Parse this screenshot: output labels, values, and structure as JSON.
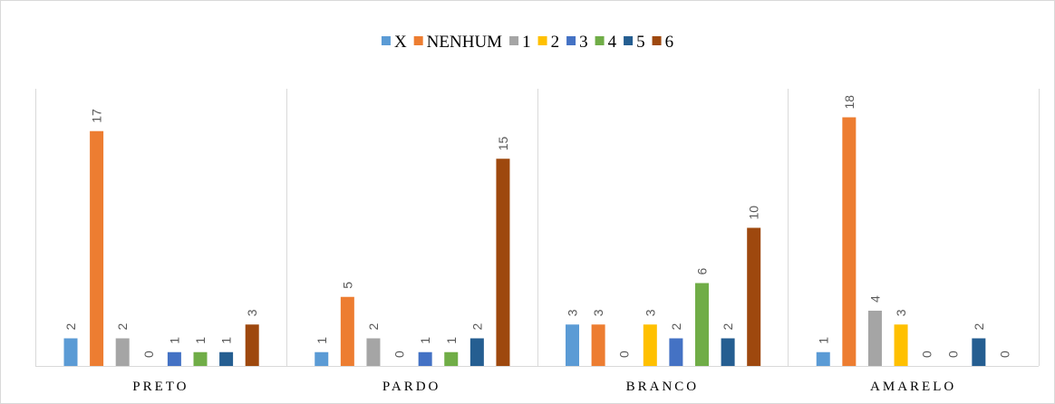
{
  "chart_data": {
    "type": "bar",
    "title": "",
    "xlabel": "",
    "ylabel": "",
    "ylim": [
      0,
      19
    ],
    "grid": false,
    "legend_position": "top",
    "categories": [
      "PRETO",
      "PARDO",
      "BRANCO",
      "AMARELO"
    ],
    "series": [
      {
        "name": "X",
        "color": "#5b9bd5",
        "values": [
          2,
          1,
          3,
          1
        ]
      },
      {
        "name": "NENHUM",
        "color": "#ed7d31",
        "values": [
          17,
          5,
          3,
          18
        ]
      },
      {
        "name": "1",
        "color": "#a5a5a5",
        "values": [
          2,
          2,
          0,
          4
        ]
      },
      {
        "name": "2",
        "color": "#ffc000",
        "values": [
          0,
          0,
          3,
          3
        ]
      },
      {
        "name": "3",
        "color": "#4472c4",
        "values": [
          1,
          1,
          2,
          0
        ]
      },
      {
        "name": "4",
        "color": "#70ad47",
        "values": [
          1,
          1,
          6,
          0
        ]
      },
      {
        "name": "5",
        "color": "#255e91",
        "values": [
          1,
          2,
          2,
          2
        ]
      },
      {
        "name": "6",
        "color": "#9e480e",
        "values": [
          3,
          15,
          10,
          0
        ]
      }
    ]
  }
}
